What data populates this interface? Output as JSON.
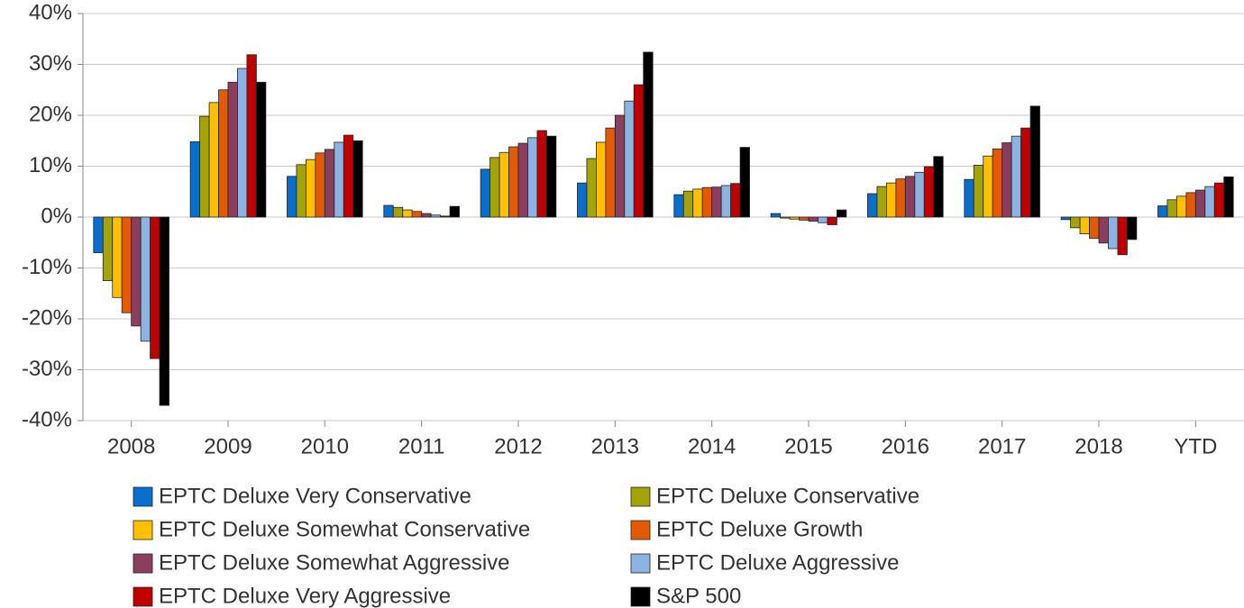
{
  "chart_data": {
    "type": "bar",
    "categories": [
      "2008",
      "2009",
      "2010",
      "2011",
      "2012",
      "2013",
      "2014",
      "2015",
      "2016",
      "2017",
      "2018",
      "YTD"
    ],
    "series": [
      {
        "name": "EPTC Deluxe Very Conservative",
        "color": "#0a6ecc",
        "values": [
          -7.0,
          14.8,
          8.0,
          2.3,
          9.4,
          6.7,
          4.4,
          0.7,
          4.6,
          7.4,
          -0.5,
          2.2
        ]
      },
      {
        "name": "EPTC Deluxe Conservative",
        "color": "#a3a30a",
        "values": [
          -12.5,
          19.8,
          10.3,
          1.9,
          11.7,
          11.5,
          5.1,
          -0.2,
          6.0,
          10.2,
          -2.1,
          3.4
        ]
      },
      {
        "name": "EPTC Deluxe Somewhat Conservative",
        "color": "#ffc000",
        "values": [
          -15.8,
          22.5,
          11.3,
          1.4,
          12.7,
          14.7,
          5.5,
          -0.4,
          6.7,
          12.0,
          -3.3,
          4.1
        ]
      },
      {
        "name": "EPTC Deluxe Growth",
        "color": "#e35a05",
        "values": [
          -18.8,
          25.0,
          12.6,
          1.1,
          13.8,
          17.5,
          5.8,
          -0.6,
          7.5,
          13.4,
          -4.2,
          4.8
        ]
      },
      {
        "name": "EPTC Deluxe Somewhat Aggressive",
        "color": "#8a3f5f",
        "values": [
          -21.4,
          26.5,
          13.3,
          0.7,
          14.5,
          20.0,
          5.9,
          -0.8,
          8.0,
          14.6,
          -5.1,
          5.3
        ]
      },
      {
        "name": "EPTC Deluxe Aggressive",
        "color": "#8db3e2",
        "values": [
          -24.4,
          29.2,
          14.7,
          0.4,
          15.6,
          22.8,
          6.2,
          -1.1,
          8.8,
          15.9,
          -6.2,
          6.0
        ]
      },
      {
        "name": "EPTC Deluxe Very Aggressive",
        "color": "#c00000",
        "values": [
          -27.8,
          31.9,
          16.1,
          0.2,
          17.0,
          26.0,
          6.6,
          -1.5,
          9.9,
          17.5,
          -7.4,
          6.7
        ]
      },
      {
        "name": "S&P 500",
        "color": "#000000",
        "values": [
          -37.0,
          26.5,
          15.0,
          2.1,
          15.9,
          32.4,
          13.7,
          1.4,
          11.9,
          21.8,
          -4.4,
          7.9
        ]
      }
    ],
    "ylim": [
      -40,
      40
    ],
    "yticks": [
      {
        "value": -40,
        "label": "-40%"
      },
      {
        "value": -30,
        "label": "-30%"
      },
      {
        "value": -20,
        "label": "-20%"
      },
      {
        "value": -10,
        "label": "-10%"
      },
      {
        "value": 0,
        "label": "0%"
      },
      {
        "value": 10,
        "label": "10%"
      },
      {
        "value": 20,
        "label": "20%"
      },
      {
        "value": 30,
        "label": "30%"
      },
      {
        "value": 40,
        "label": "40%"
      }
    ],
    "grid": true
  }
}
